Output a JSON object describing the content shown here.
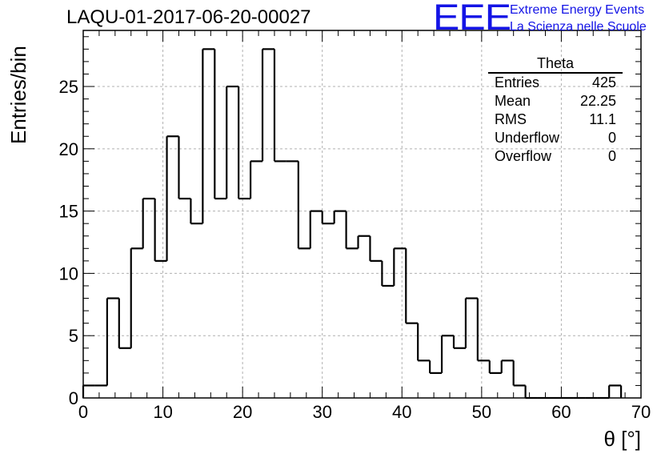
{
  "header": {
    "title": "LAQU-01-2017-06-20-00027",
    "logo_text": "EEE",
    "logo_line1": "Extreme Energy Events",
    "logo_line2": "La Scienza nelle Scuole"
  },
  "stats": {
    "title": "Theta",
    "rows": [
      {
        "label": "Entries",
        "value": "425"
      },
      {
        "label": "Mean",
        "value": "22.25"
      },
      {
        "label": "RMS",
        "value": "11.1"
      },
      {
        "label": "Underflow",
        "value": "0"
      },
      {
        "label": "Overflow",
        "value": "0"
      }
    ]
  },
  "colors": {
    "logo": "#1414e6",
    "line": "#000000",
    "grid": "#b0b0b0"
  },
  "chart_data": {
    "type": "bar",
    "style": "step-histogram",
    "title": "LAQU-01-2017-06-20-00027",
    "xlabel": "θ [°]",
    "ylabel": "Entries/bin",
    "xlim": [
      0,
      70
    ],
    "ylim": [
      0,
      29.5
    ],
    "xticks": [
      0,
      10,
      20,
      30,
      40,
      50,
      60,
      70
    ],
    "yticks": [
      0,
      5,
      10,
      15,
      20,
      25
    ],
    "grid": true,
    "bin_width": 1.5,
    "bin_start": 0,
    "values": [
      1,
      1,
      8,
      4,
      12,
      16,
      11,
      21,
      16,
      14,
      28,
      16,
      25,
      16,
      19,
      28,
      19,
      19,
      12,
      15,
      14,
      15,
      12,
      13,
      11,
      9,
      12,
      6,
      3,
      2,
      5,
      4,
      8,
      3,
      2,
      3,
      1,
      0,
      0,
      0,
      0,
      0,
      0,
      0,
      1
    ]
  }
}
